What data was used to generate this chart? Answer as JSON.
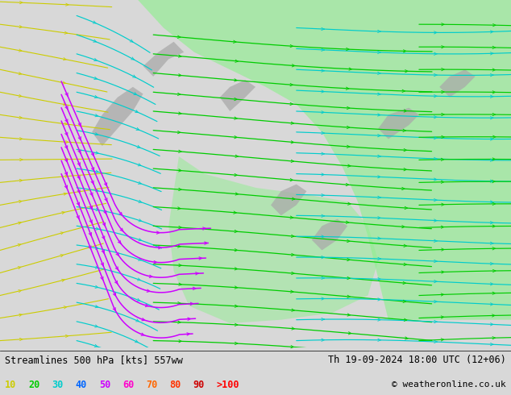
{
  "title_left": "Streamlines 500 hPa [kts] 557ww",
  "title_right": "Th 19-09-2024 18:00 UTC (12+06)",
  "credit": "© weatheronline.co.uk",
  "legend_values": [
    "10",
    "20",
    "30",
    "40",
    "50",
    "60",
    "70",
    "80",
    "90",
    ">100"
  ],
  "legend_colors": [
    "#cccc00",
    "#00cc00",
    "#00cccc",
    "#0066ff",
    "#cc00ff",
    "#ff00cc",
    "#ff6600",
    "#ff3300",
    "#cc0000",
    "#ff0000"
  ],
  "bg_color": "#d8d8d8",
  "map_bg": "#e8e8e8",
  "green_fill": "#90ee90",
  "bottom_bar_color": "#ffffff",
  "figsize": [
    6.34,
    4.9
  ],
  "dpi": 100,
  "streamline_colors": {
    "slow": "#cccc00",
    "medium": "#00cccc",
    "fast_green": "#00cc00",
    "fast_blue": "#0066ff",
    "jet": "#cc00ff"
  }
}
